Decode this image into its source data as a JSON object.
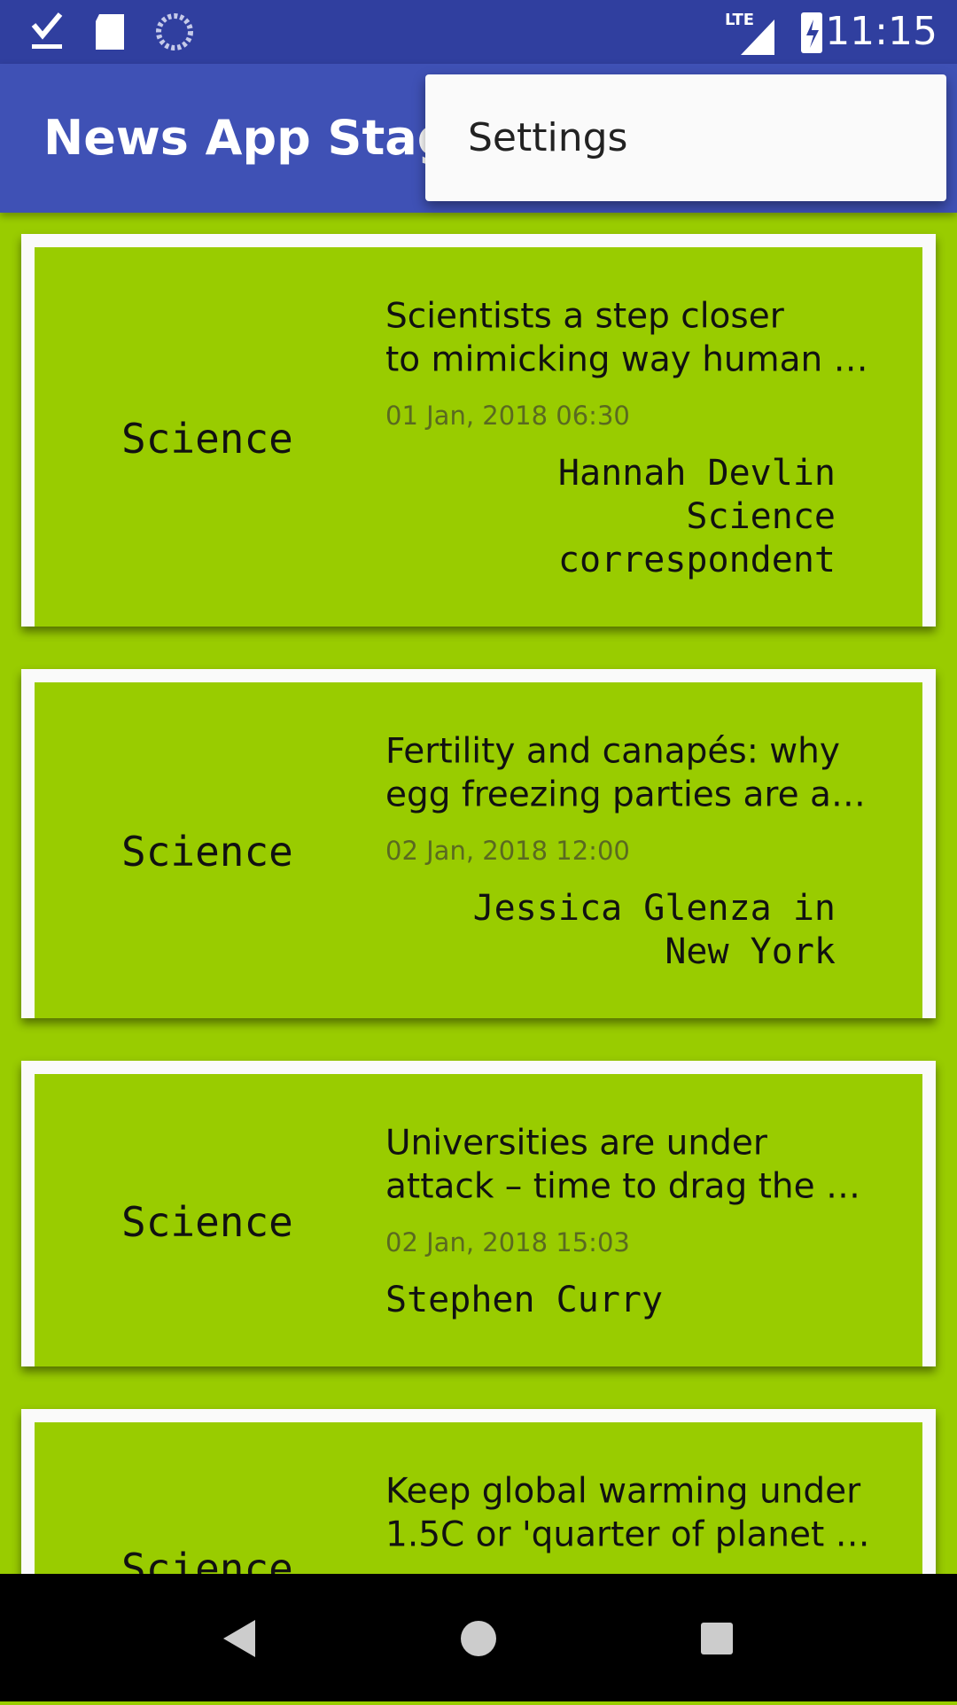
{
  "status_bar": {
    "network": "LTE",
    "time": "11:15"
  },
  "app_bar": {
    "title": "News App Stage"
  },
  "menu": {
    "items": [
      "Settings"
    ]
  },
  "articles": [
    {
      "section": "Science",
      "title": [
        "Scientists a step closer",
        "to mimicking way human …"
      ],
      "date": "01 Jan, 2018 06:30",
      "author": [
        "Hannah Devlin",
        "Science",
        "correspondent"
      ]
    },
    {
      "section": "Science",
      "title": [
        "Fertility and canapés: why",
        "egg freezing parties are a…"
      ],
      "date": "02 Jan, 2018 12:00",
      "author": [
        "Jessica Glenza in",
        "New York"
      ]
    },
    {
      "section": "Science",
      "title": [
        "Universities are under",
        "attack – time to drag the …"
      ],
      "date": "02 Jan, 2018 15:03",
      "author": [
        "Stephen Curry"
      ]
    },
    {
      "section": "Science",
      "title": [
        "Keep global warming under",
        "1.5C or 'quarter of planet …"
      ]
    }
  ]
}
